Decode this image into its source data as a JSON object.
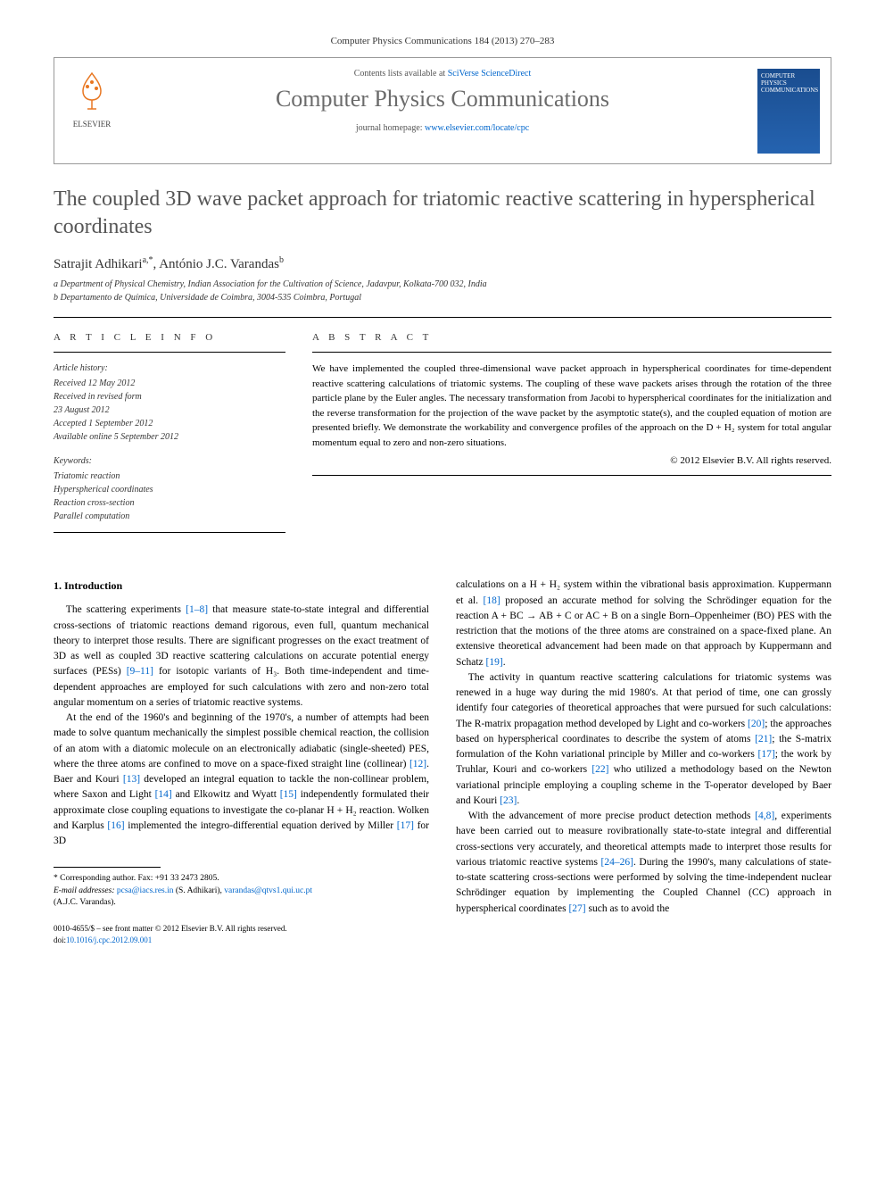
{
  "header": {
    "citation": "Computer Physics Communications 184 (2013) 270–283",
    "contents_prefix": "Contents lists available at ",
    "sciverse": "SciVerse ScienceDirect",
    "journal_name": "Computer Physics Communications",
    "homepage_prefix": "journal homepage: ",
    "homepage_url": "www.elsevier.com/locate/cpc",
    "elsevier_label": "ELSEVIER",
    "cover_text": "COMPUTER PHYSICS COMMUNICATIONS"
  },
  "article": {
    "title": "The coupled 3D wave packet approach for triatomic reactive scattering in hyperspherical coordinates",
    "authors_html": "Satrajit Adhikari",
    "author1": "Satrajit Adhikari",
    "author1_sup": "a,*",
    "author2": "António J.C. Varandas",
    "author2_sup": "b",
    "affil_a": "a Department of Physical Chemistry, Indian Association for the Cultivation of Science, Jadavpur, Kolkata-700 032, India",
    "affil_b": "b Departamento de Química, Universidade de Coimbra, 3004-535 Coimbra, Portugal"
  },
  "info": {
    "heading": "A R T I C L E   I N F O",
    "history_head": "Article history:",
    "received": "Received 12 May 2012",
    "revised1": "Received in revised form",
    "revised2": "23 August 2012",
    "accepted": "Accepted 1 September 2012",
    "online": "Available online 5 September 2012",
    "keywords_head": "Keywords:",
    "kw1": "Triatomic reaction",
    "kw2": "Hyperspherical coordinates",
    "kw3": "Reaction cross-section",
    "kw4": "Parallel computation"
  },
  "abstract": {
    "heading": "A B S T R A C T",
    "text": "We have implemented the coupled three-dimensional wave packet approach in hyperspherical coordinates for time-dependent reactive scattering calculations of triatomic systems. The coupling of these wave packets arises through the rotation of the three particle plane by the Euler angles. The necessary transformation from Jacobi to hyperspherical coordinates for the initialization and the reverse transformation for the projection of the wave packet by the asymptotic state(s), and the coupled equation of motion are presented briefly. We demonstrate the workability and convergence profiles of the approach on the D + H₂ system for total angular momentum equal to zero and non-zero situations.",
    "copyright": "© 2012 Elsevier B.V. All rights reserved."
  },
  "body": {
    "section1_head": "1. Introduction",
    "col1_p1": "The scattering experiments [1–8] that measure state-to-state integral and differential cross-sections of triatomic reactions demand rigorous, even full, quantum mechanical theory to interpret those results. There are significant progresses on the exact treatment of 3D as well as coupled 3D reactive scattering calculations on accurate potential energy surfaces (PESs) [9–11] for isotopic variants of H₃. Both time-independent and time-dependent approaches are employed for such calculations with zero and non-zero total angular momentum on a series of triatomic reactive systems.",
    "col1_p2": "At the end of the 1960's and beginning of the 1970's, a number of attempts had been made to solve quantum mechanically the simplest possible chemical reaction, the collision of an atom with a diatomic molecule on an electronically adiabatic (single-sheeted) PES, where the three atoms are confined to move on a space-fixed straight line (collinear) [12]. Baer and Kouri [13] developed an integral equation to tackle the non-collinear problem, where Saxon and Light [14] and Elkowitz and Wyatt [15] independently formulated their approximate close coupling equations to investigate the co-planar H + H₂ reaction. Wolken and Karplus [16] implemented the integro-differential equation derived by Miller [17] for 3D",
    "col2_p1": "calculations on a H + H₂ system within the vibrational basis approximation. Kuppermann et al. [18] proposed an accurate method for solving the Schrödinger equation for the reaction A + BC → AB + C or AC + B on a single Born–Oppenheimer (BO) PES with the restriction that the motions of the three atoms are constrained on a space-fixed plane. An extensive theoretical advancement had been made on that approach by Kuppermann and Schatz [19].",
    "col2_p2": "The activity in quantum reactive scattering calculations for triatomic systems was renewed in a huge way during the mid 1980's. At that period of time, one can grossly identify four categories of theoretical approaches that were pursued for such calculations: The R-matrix propagation method developed by Light and co-workers [20]; the approaches based on hyperspherical coordinates to describe the system of atoms [21]; the S-matrix formulation of the Kohn variational principle by Miller and co-workers [17]; the work by Truhlar, Kouri and co-workers [22] who utilized a methodology based on the Newton variational principle employing a coupling scheme in the T-operator developed by Baer and Kouri [23].",
    "col2_p3": "With the advancement of more precise product detection methods [4,8], experiments have been carried out to measure rovibrationally state-to-state integral and differential cross-sections very accurately, and theoretical attempts made to interpret those results for various triatomic reactive systems [24–26]. During the 1990's, many calculations of state-to-state scattering cross-sections were performed by solving the time-independent nuclear Schrödinger equation by implementing the Coupled Channel (CC) approach in hyperspherical coordinates [27] such as to avoid the"
  },
  "footnote": {
    "corresp": "* Corresponding author. Fax: +91 33 2473 2805.",
    "email_label": "E-mail addresses: ",
    "email1": "pcsa@iacs.res.in",
    "email1_who": " (S. Adhikari), ",
    "email2": "varandas@qtvs1.qui.uc.pt",
    "email2_who": "(A.J.C. Varandas)."
  },
  "footer": {
    "line1": "0010-4655/$ – see front matter © 2012 Elsevier B.V. All rights reserved.",
    "doi_label": "doi:",
    "doi": "10.1016/j.cpc.2012.09.001"
  },
  "colors": {
    "link": "#0066cc",
    "title_gray": "#555555",
    "journal_gray": "#6b6b6b",
    "cover_bg": "#1a4d8f"
  }
}
